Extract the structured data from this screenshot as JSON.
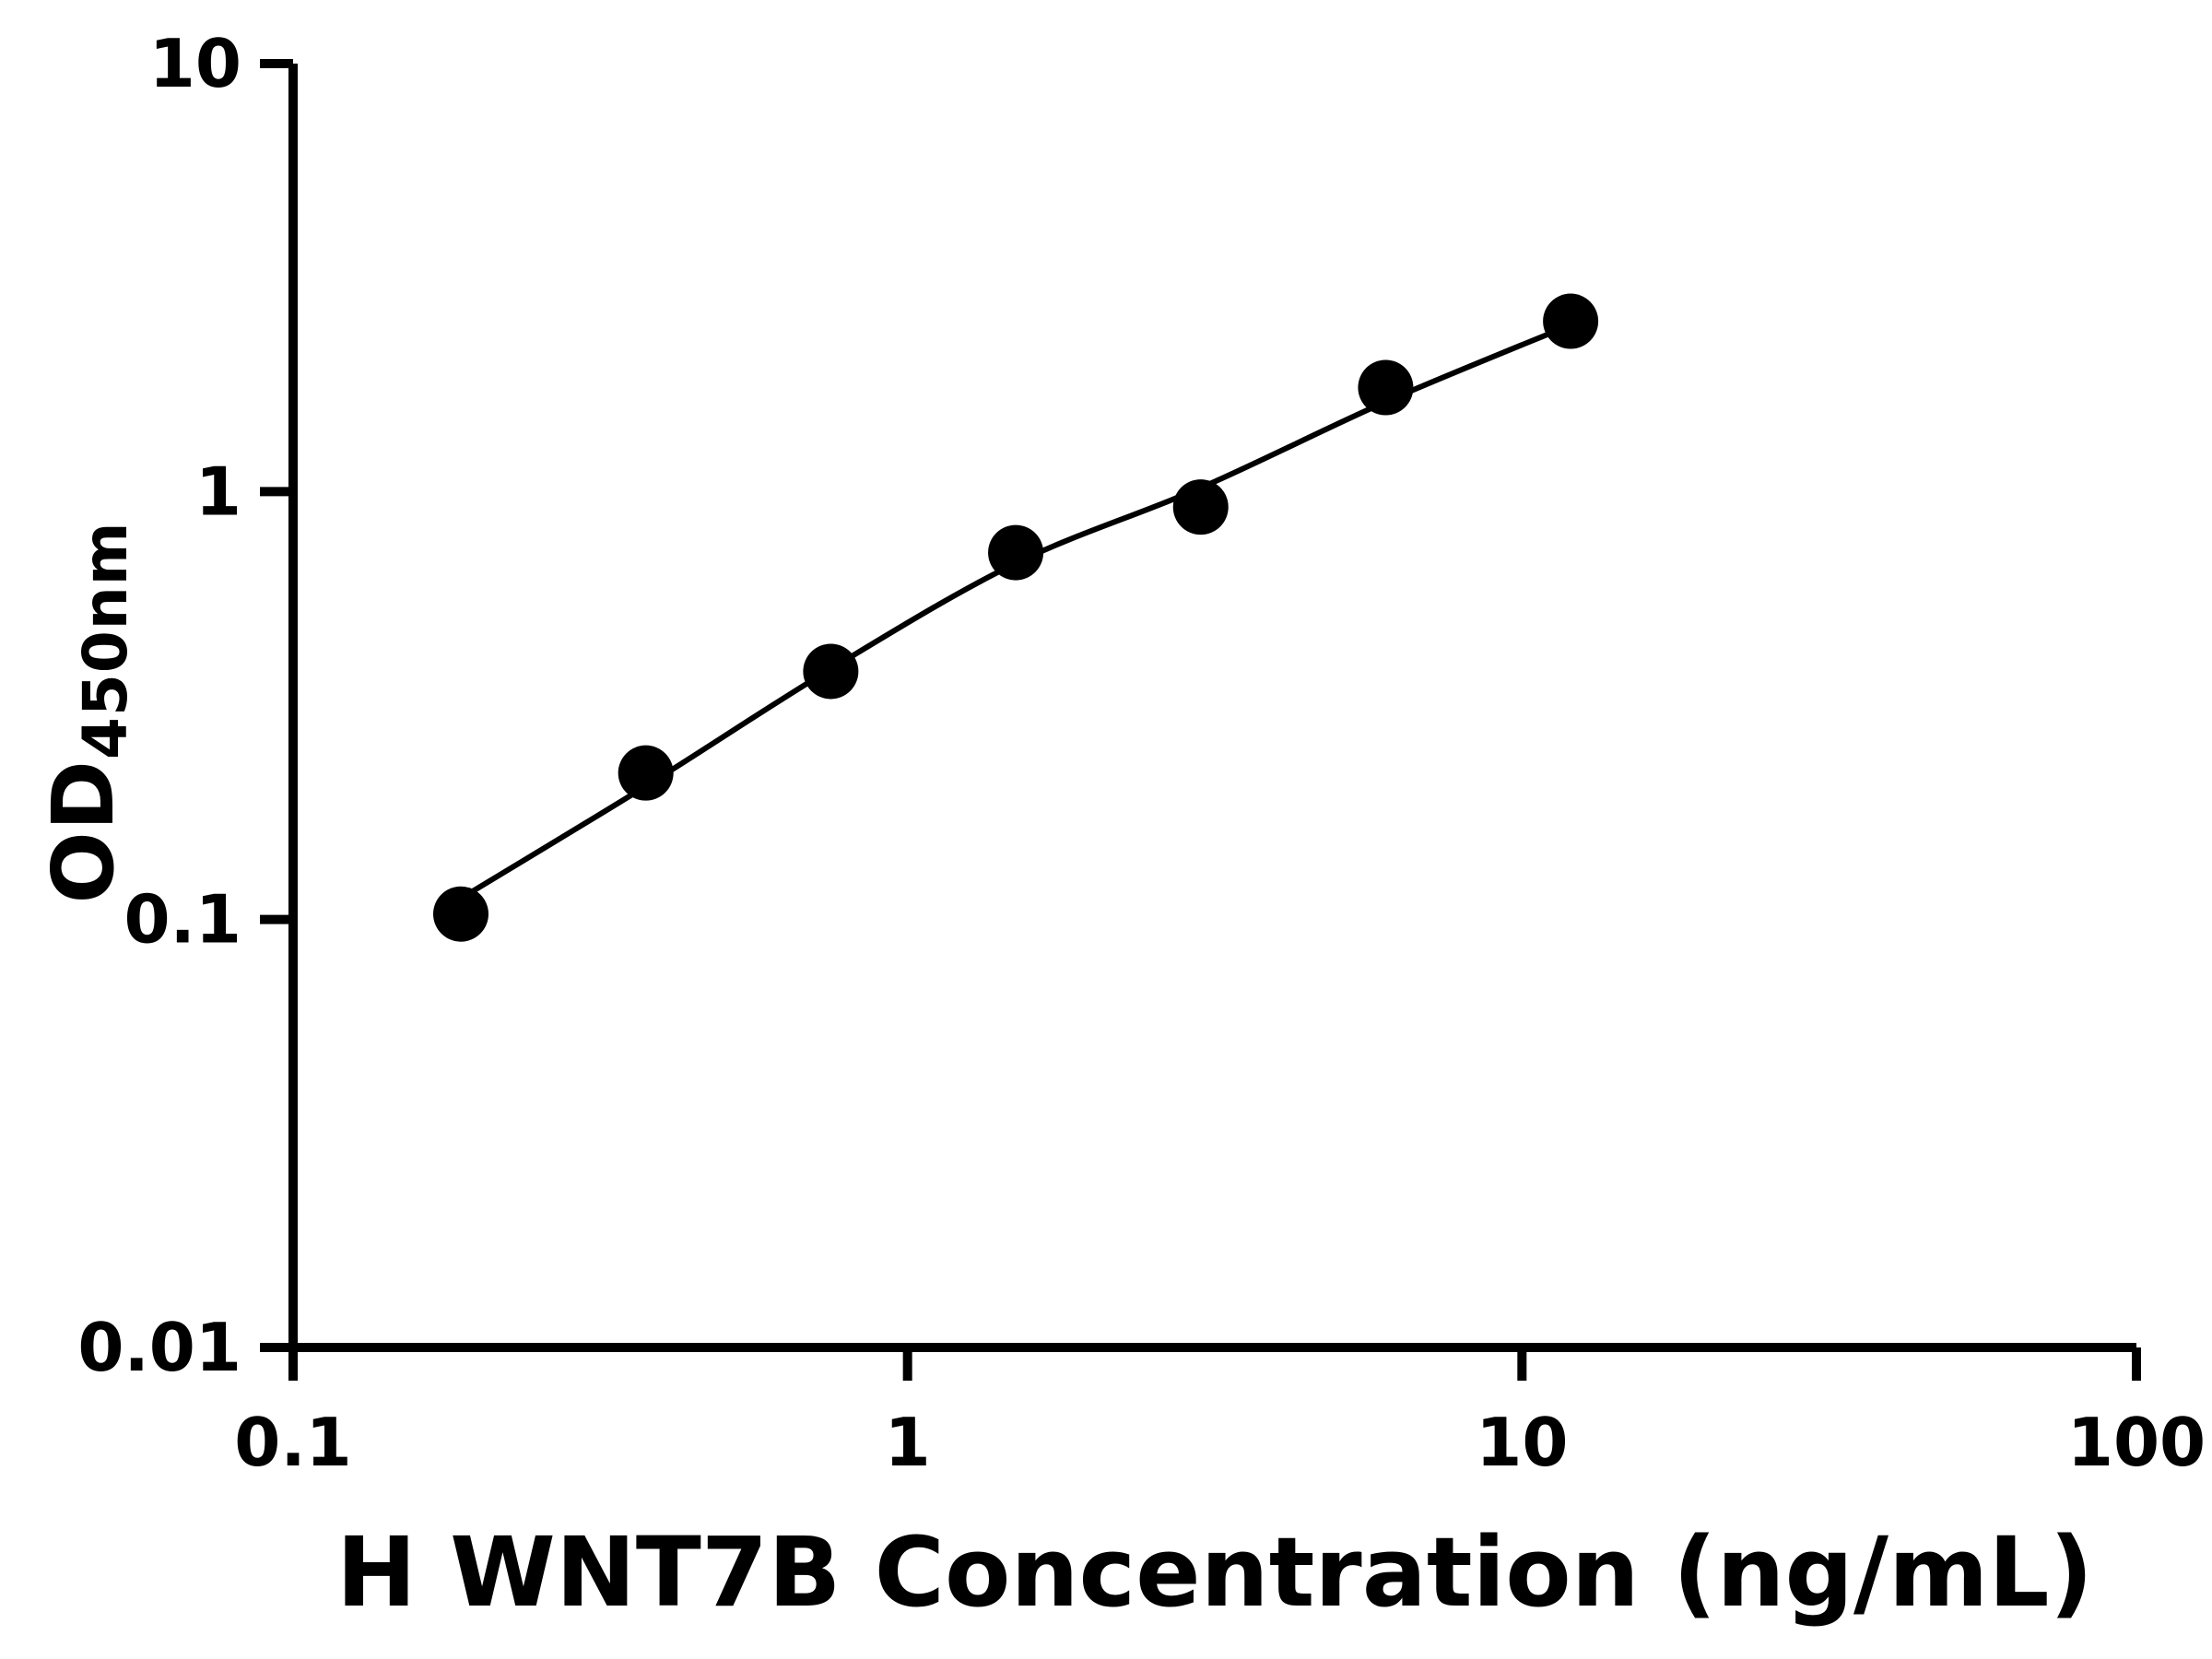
{
  "figure": {
    "background": "#ffffff",
    "axis_color": "#000000",
    "point_color": "#000000",
    "curve_color": "#000000"
  },
  "chart_data": {
    "type": "scatter",
    "title": "",
    "xlabel": "H WNT7B Concentration (ng/mL)",
    "ylabel_main": "OD",
    "ylabel_sub": "450nm",
    "x_scale": "log",
    "y_scale": "log",
    "xlim": [
      0.1,
      100
    ],
    "ylim": [
      0.01,
      10
    ],
    "grid": false,
    "legend": null,
    "x_ticks": [
      0.1,
      1,
      10,
      100
    ],
    "x_tick_labels": [
      "0.1",
      "1",
      "10",
      "100"
    ],
    "y_ticks": [
      0.01,
      0.1,
      1,
      10
    ],
    "y_tick_labels": [
      "0.01",
      "0.1",
      "1",
      "10"
    ],
    "points": [
      {
        "x": 0.1875,
        "y": 0.103
      },
      {
        "x": 0.375,
        "y": 0.22
      },
      {
        "x": 0.75,
        "y": 0.38
      },
      {
        "x": 1.5,
        "y": 0.72
      },
      {
        "x": 3.0,
        "y": 0.92
      },
      {
        "x": 6.0,
        "y": 1.75
      },
      {
        "x": 12.0,
        "y": 2.5
      }
    ],
    "fit_curve": [
      {
        "x": 0.1875,
        "y": 0.112
      },
      {
        "x": 0.375,
        "y": 0.205
      },
      {
        "x": 0.75,
        "y": 0.385
      },
      {
        "x": 1.5,
        "y": 0.68
      },
      {
        "x": 3.0,
        "y": 1.02
      },
      {
        "x": 6.0,
        "y": 1.62
      },
      {
        "x": 12.0,
        "y": 2.45
      }
    ]
  }
}
